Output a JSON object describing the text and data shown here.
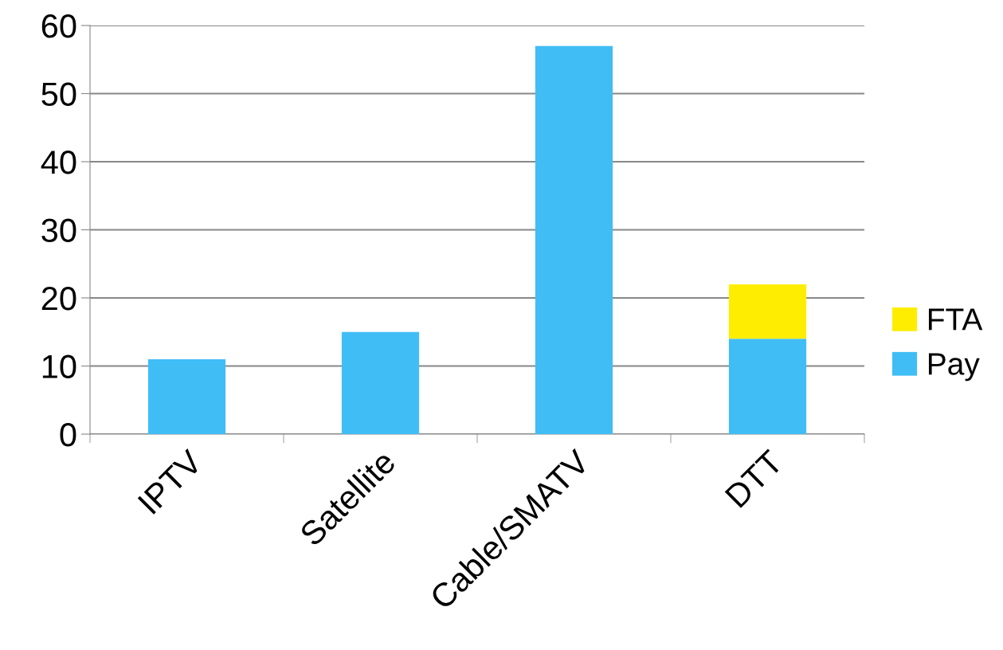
{
  "chart_data": {
    "type": "bar",
    "stacked": true,
    "categories": [
      "IPTV",
      "Satellite",
      "Cable/SMATV",
      "DTT"
    ],
    "series": [
      {
        "name": "Pay",
        "color": "#41bdf5",
        "values": [
          11,
          15,
          57,
          14
        ]
      },
      {
        "name": "FTA",
        "color": "#ffed00",
        "values": [
          0,
          0,
          0,
          8
        ]
      }
    ],
    "ylim": [
      0,
      60
    ],
    "yticks": [
      0,
      10,
      20,
      30,
      40,
      50,
      60
    ],
    "grid": "y",
    "legend": "right"
  }
}
